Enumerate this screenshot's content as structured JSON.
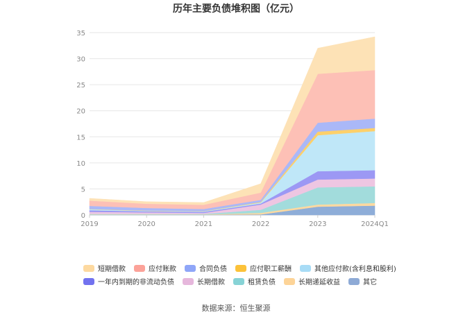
{
  "chart_data": {
    "type": "area",
    "stacked": true,
    "title": "历年主要负债堆积图（亿元）",
    "x": [
      "2019",
      "2020",
      "2021",
      "2022",
      "2023",
      "2024Q1"
    ],
    "ylim": [
      0,
      35
    ],
    "yticks": [
      "0",
      "5",
      "10",
      "15",
      "20",
      "25",
      "30",
      "35"
    ],
    "grid": true,
    "legend_position": "bottom",
    "series": [
      {
        "name": "其它",
        "color": "#8eadd8",
        "values": [
          0.05,
          0.05,
          0.05,
          0.1,
          1.6,
          1.8
        ]
      },
      {
        "name": "长期递延收益",
        "color": "#fdd9a0",
        "values": [
          0.05,
          0.05,
          0.05,
          0.3,
          0.4,
          0.5
        ]
      },
      {
        "name": "租赁负债",
        "color": "#a2dcdc",
        "values": [
          0.1,
          0.1,
          0.1,
          0.6,
          3.3,
          3.2
        ]
      },
      {
        "name": "长期借款",
        "color": "#eec6e2",
        "values": [
          0.4,
          0.3,
          0.2,
          1.0,
          1.5,
          1.5
        ]
      },
      {
        "name": "一年内到期的非流动负债",
        "color": "#9c98f4",
        "values": [
          0.3,
          0.2,
          0.2,
          0.2,
          1.6,
          1.6
        ]
      },
      {
        "name": "其他应付款(含利息和股利)",
        "color": "#bfe7f8",
        "values": [
          0.2,
          0.1,
          0.1,
          0.2,
          6.9,
          7.5
        ]
      },
      {
        "name": "应付职工薪酬",
        "color": "#fdd06a",
        "values": [
          0.05,
          0.05,
          0.05,
          0.1,
          0.7,
          0.6
        ]
      },
      {
        "name": "合同负债",
        "color": "#aab8f8",
        "values": [
          0.6,
          0.5,
          0.4,
          0.4,
          1.7,
          1.8
        ]
      },
      {
        "name": "应付账款",
        "color": "#fdc0b6",
        "values": [
          1.0,
          0.8,
          0.8,
          1.4,
          9.4,
          9.3
        ]
      },
      {
        "name": "短期借款",
        "color": "#fde2b6",
        "values": [
          0.45,
          0.4,
          0.45,
          1.7,
          4.9,
          6.4
        ]
      }
    ]
  },
  "legend": {
    "rows": [
      [
        {
          "label": "短期借款",
          "color": "#fdd9a0"
        },
        {
          "label": "应付账款",
          "color": "#fca299"
        },
        {
          "label": "合同负债",
          "color": "#8fa6f8"
        },
        {
          "label": "应付职工薪酬",
          "color": "#fcc23a"
        },
        {
          "label": "其他应付款(含利息和股利)",
          "color": "#a8dcf6"
        }
      ],
      [
        {
          "label": "一年内到期的非流动负债",
          "color": "#7272ef"
        },
        {
          "label": "长期借款",
          "color": "#e6b7dc"
        },
        {
          "label": "租赁负债",
          "color": "#87d3d6"
        },
        {
          "label": "长期递延收益",
          "color": "#fdd498"
        },
        {
          "label": "其它",
          "color": "#8eaad6"
        }
      ]
    ]
  },
  "source": "数据来源：恒生聚源"
}
